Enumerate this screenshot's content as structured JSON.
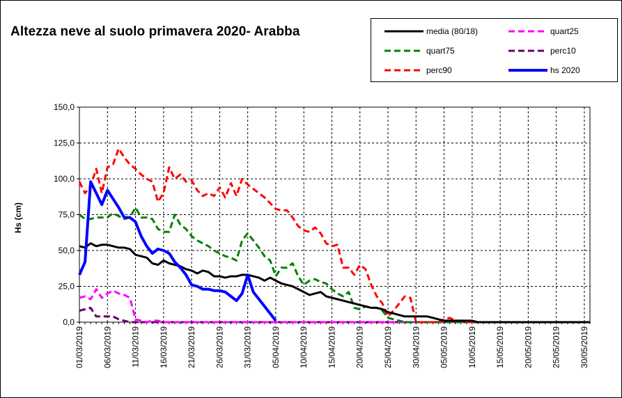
{
  "chart_data": {
    "type": "line",
    "title": "Altezza neve al suolo primavera 2020- Arabba",
    "ylabel": "Hs (cm)",
    "xlabel": "",
    "ylim": [
      0,
      150
    ],
    "y_ticks": [
      "0,0",
      "25,0",
      "50,0",
      "75,0",
      "100,0",
      "125,0",
      "150,0"
    ],
    "x_ticks": [
      "01/03/2019",
      "06/03/2019",
      "11/03/2019",
      "16/03/2019",
      "21/03/2019",
      "26/03/2019",
      "31/03/2019",
      "05/04/2019",
      "10/04/2019",
      "15/04/2019",
      "20/04/2019",
      "25/04/2019",
      "30/04/2019",
      "05/05/2019",
      "10/05/2019",
      "15/05/2019",
      "20/05/2019",
      "25/05/2019",
      "30/05/2019"
    ],
    "grid": "vertical and horizontal dashed",
    "legend_position": "top-right",
    "series": [
      {
        "name": "media (80/18)",
        "color": "#000000",
        "style": "solid",
        "x_index": [
          0,
          1,
          2,
          3,
          4,
          5,
          6,
          7,
          8,
          9,
          10,
          11,
          12,
          13,
          14,
          15,
          16,
          17,
          18,
          19,
          20,
          21,
          22,
          23,
          24,
          25,
          26,
          27,
          28,
          29,
          30,
          31,
          32,
          33,
          34,
          35,
          36,
          37,
          38,
          39,
          40,
          41,
          42,
          43,
          44,
          45,
          46,
          47,
          48,
          49,
          50,
          51,
          52,
          53,
          54,
          55,
          56,
          57,
          58,
          59,
          60,
          61,
          62,
          63,
          64,
          65,
          66,
          67,
          68,
          69,
          70,
          71,
          72,
          73,
          74,
          75,
          76,
          77,
          78,
          79,
          80,
          81,
          82,
          83,
          84,
          85,
          86,
          87,
          88,
          89,
          90,
          91
        ],
        "values": [
          53,
          52,
          55,
          53,
          54,
          54,
          53,
          52,
          52,
          51,
          47,
          46,
          45,
          41,
          40,
          43,
          41,
          40,
          39,
          37,
          36,
          34,
          36,
          35,
          32,
          32,
          31,
          32,
          32,
          33,
          33,
          32,
          31,
          29,
          31,
          29,
          27,
          26,
          25,
          23,
          21,
          19,
          20,
          21,
          18,
          17,
          16,
          15,
          14,
          13,
          12,
          11,
          10,
          10,
          9,
          7,
          6,
          5,
          4,
          4,
          4,
          4,
          4,
          3,
          2,
          1,
          1,
          1,
          1,
          1,
          1,
          0,
          0,
          0,
          0,
          0,
          0,
          0,
          0,
          0,
          0,
          0,
          0,
          0,
          0,
          0,
          0,
          0,
          0,
          0,
          0,
          0
        ]
      },
      {
        "name": "quart25",
        "color": "#ff00ff",
        "style": "dashed",
        "x_index": [
          0,
          1,
          2,
          3,
          4,
          5,
          6,
          7,
          8,
          9,
          10,
          11,
          12,
          13,
          14,
          15,
          16,
          17,
          18,
          19,
          20,
          21,
          22,
          23,
          24,
          25,
          26,
          27,
          28,
          29,
          30,
          31,
          32,
          33,
          34,
          35,
          36,
          37,
          38,
          39,
          40,
          41,
          42,
          43,
          44,
          45,
          46,
          47,
          48,
          49,
          50,
          51,
          52,
          53,
          54,
          55,
          56,
          57,
          58,
          59,
          60,
          61,
          62,
          63,
          64,
          65,
          66,
          67,
          68,
          69,
          70,
          71,
          72,
          73,
          74,
          75,
          76,
          77,
          78,
          79,
          80,
          81,
          82,
          83,
          84,
          85,
          86,
          87,
          88,
          89,
          90,
          91
        ],
        "values": [
          17,
          18,
          16,
          23,
          17,
          20,
          22,
          20,
          19,
          17,
          2,
          1,
          0,
          1,
          1,
          0,
          0,
          0,
          0,
          0,
          0,
          0,
          0,
          0,
          0,
          0,
          0,
          0,
          0,
          0,
          0,
          0,
          0,
          0,
          0,
          0,
          0,
          0,
          0,
          0,
          0,
          0,
          0,
          0,
          0,
          0,
          0,
          0,
          0,
          0,
          0,
          0,
          0,
          0,
          0,
          0,
          0,
          0,
          0,
          0,
          0,
          0,
          0,
          0,
          0,
          0,
          0,
          0,
          0,
          0,
          0,
          0,
          0,
          0,
          0,
          0,
          0,
          0,
          0,
          0,
          0,
          0,
          0,
          0,
          0,
          0,
          0,
          0,
          0,
          0,
          0,
          0
        ]
      },
      {
        "name": "quart75",
        "color": "#008000",
        "style": "dashed",
        "x_index": [
          0,
          1,
          2,
          3,
          4,
          5,
          6,
          7,
          8,
          9,
          10,
          11,
          12,
          13,
          14,
          15,
          16,
          17,
          18,
          19,
          20,
          21,
          22,
          23,
          24,
          25,
          26,
          27,
          28,
          29,
          30,
          31,
          32,
          33,
          34,
          35,
          36,
          37,
          38,
          39,
          40,
          41,
          42,
          43,
          44,
          45,
          46,
          47,
          48,
          49,
          50,
          51,
          52,
          53,
          54,
          55,
          56,
          57,
          58,
          59,
          60,
          61,
          62,
          63,
          64,
          65,
          66,
          67,
          68,
          69,
          70,
          71,
          72,
          73,
          74,
          75,
          76,
          77,
          78,
          79,
          80,
          81,
          82,
          83,
          84,
          85,
          86,
          87,
          88,
          89,
          90,
          91
        ],
        "values": [
          75,
          72,
          72,
          73,
          73,
          73,
          76,
          74,
          72,
          73,
          80,
          73,
          73,
          72,
          65,
          63,
          63,
          75,
          68,
          65,
          60,
          57,
          55,
          53,
          50,
          48,
          46,
          45,
          43,
          57,
          62,
          57,
          52,
          46,
          43,
          32,
          38,
          38,
          41,
          32,
          26,
          29,
          30,
          28,
          27,
          23,
          20,
          18,
          21,
          10,
          9,
          11,
          10,
          10,
          8,
          3,
          2,
          1,
          0,
          0,
          0,
          0,
          0,
          0,
          0,
          0,
          0,
          0,
          0,
          0,
          0,
          0,
          0,
          0,
          0,
          0,
          0,
          0,
          0,
          0,
          0,
          0,
          0,
          0,
          0,
          0,
          0,
          0,
          0,
          0,
          0,
          0
        ]
      },
      {
        "name": "perc10",
        "color": "#660066",
        "style": "dashed",
        "x_index": [
          0,
          1,
          2,
          3,
          4,
          5,
          6,
          7,
          8,
          9,
          10,
          11,
          12,
          13,
          14,
          15,
          16,
          17,
          18,
          19,
          20,
          21,
          22,
          23,
          24,
          25,
          26,
          27,
          28,
          29,
          30,
          31,
          32,
          33,
          34,
          35,
          36,
          37,
          38,
          39,
          40,
          41,
          42,
          43,
          44,
          45,
          46,
          47,
          48,
          49,
          50,
          51,
          52,
          53,
          54,
          55,
          56,
          57,
          58,
          59,
          60,
          61,
          62,
          63,
          64,
          65,
          66,
          67,
          68,
          69,
          70,
          71,
          72,
          73,
          74,
          75,
          76,
          77,
          78,
          79,
          80,
          81,
          82,
          83,
          84,
          85,
          86,
          87,
          88,
          89,
          90,
          91
        ],
        "values": [
          8,
          9,
          10,
          4,
          4,
          4,
          4,
          2,
          1,
          0,
          0,
          0,
          0,
          0,
          0,
          0,
          0,
          0,
          0,
          0,
          0,
          0,
          0,
          0,
          0,
          0,
          0,
          0,
          0,
          0,
          0,
          0,
          0,
          0,
          0,
          0,
          0,
          0,
          0,
          0,
          0,
          0,
          0,
          0,
          0,
          0,
          0,
          0,
          0,
          0,
          0,
          0,
          0,
          0,
          0,
          0,
          0,
          0,
          0,
          0,
          0,
          0,
          0,
          0,
          0,
          0,
          0,
          0,
          0,
          0,
          0,
          0,
          0,
          0,
          0,
          0,
          0,
          0,
          0,
          0,
          0,
          0,
          0,
          0,
          0,
          0,
          0,
          0,
          0,
          0,
          0,
          0
        ]
      },
      {
        "name": "perc90",
        "color": "#ff0000",
        "style": "dashed",
        "x_index": [
          0,
          1,
          2,
          3,
          4,
          5,
          6,
          7,
          8,
          9,
          10,
          11,
          12,
          13,
          14,
          15,
          16,
          17,
          18,
          19,
          20,
          21,
          22,
          23,
          24,
          25,
          26,
          27,
          28,
          29,
          30,
          31,
          32,
          33,
          34,
          35,
          36,
          37,
          38,
          39,
          40,
          41,
          42,
          43,
          44,
          45,
          46,
          47,
          48,
          49,
          50,
          51,
          52,
          53,
          54,
          55,
          56,
          57,
          58,
          59,
          60,
          61,
          62,
          63,
          64,
          65,
          66,
          67,
          68,
          69,
          70,
          71,
          72,
          73,
          74,
          75,
          76,
          77,
          78,
          79,
          80,
          81,
          82,
          83,
          84,
          85,
          86,
          87,
          88,
          89,
          90,
          91
        ],
        "values": [
          98,
          90,
          95,
          107,
          90,
          108,
          110,
          121,
          115,
          110,
          107,
          103,
          100,
          98,
          84,
          90,
          108,
          100,
          103,
          98,
          99,
          92,
          88,
          90,
          88,
          94,
          87,
          97,
          88,
          100,
          96,
          93,
          90,
          87,
          83,
          79,
          78,
          78,
          73,
          67,
          64,
          63,
          66,
          62,
          55,
          53,
          54,
          38,
          38,
          33,
          40,
          37,
          26,
          18,
          13,
          4,
          8,
          13,
          18,
          17,
          0,
          0,
          0,
          0,
          0,
          2,
          3,
          1,
          1,
          0,
          0,
          0,
          0,
          0,
          0,
          0,
          0,
          0,
          0,
          0,
          0,
          0,
          0,
          0,
          0,
          0,
          0,
          0,
          0,
          0,
          0,
          0
        ]
      },
      {
        "name": "hs 2020",
        "color": "#0000ff",
        "style": "solid",
        "x_index": [
          0,
          1,
          2,
          3,
          4,
          5,
          6,
          7,
          8,
          9,
          10,
          11,
          12,
          13,
          14,
          15,
          16,
          17,
          18,
          19,
          20,
          21,
          22,
          23,
          24,
          25,
          26,
          27,
          28,
          29,
          30,
          31,
          32,
          33,
          34,
          35
        ],
        "values": [
          33,
          42,
          98,
          90,
          82,
          92,
          86,
          80,
          73,
          73,
          70,
          60,
          53,
          48,
          51,
          50,
          48,
          42,
          38,
          33,
          26,
          25,
          23,
          23,
          22,
          22,
          21,
          18,
          15,
          20,
          33,
          21,
          16,
          11,
          6,
          1
        ]
      }
    ]
  }
}
